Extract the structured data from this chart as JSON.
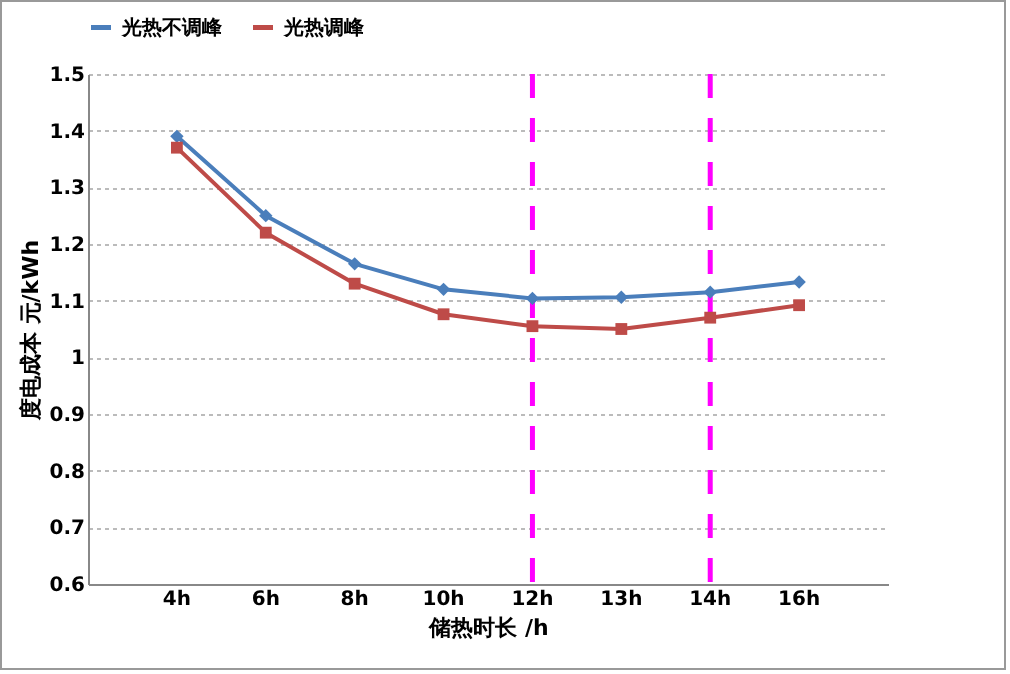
{
  "chart_data": {
    "type": "line",
    "xlabel": "储热时长 /h",
    "ylabel": "度电成本 元/kWh",
    "categories": [
      "4h",
      "6h",
      "8h",
      "10h",
      "12h",
      "13h",
      "14h",
      "16h"
    ],
    "series": [
      {
        "name": "光热不调峰",
        "color": "#4a7ebb",
        "marker": "diamond",
        "values": [
          1.39,
          1.25,
          1.165,
          1.12,
          1.104,
          1.106,
          1.115,
          1.133
        ]
      },
      {
        "name": "光热调峰",
        "color": "#be4b48",
        "marker": "square",
        "values": [
          1.37,
          1.22,
          1.13,
          1.076,
          1.055,
          1.05,
          1.07,
          1.092
        ]
      }
    ],
    "ylim": [
      0.6,
      1.5
    ],
    "yticks": [
      0.6,
      0.7,
      0.8,
      0.9,
      1,
      1.1,
      1.2,
      1.3,
      1.4,
      1.5
    ],
    "grid": "y",
    "legend": "top",
    "ref_lines": [
      {
        "axis": "x",
        "value": "12h",
        "color": "#ff00ff",
        "line_style": "dashed"
      },
      {
        "axis": "x",
        "value": "14h",
        "color": "#ff00ff",
        "line_style": "dashed"
      }
    ]
  }
}
